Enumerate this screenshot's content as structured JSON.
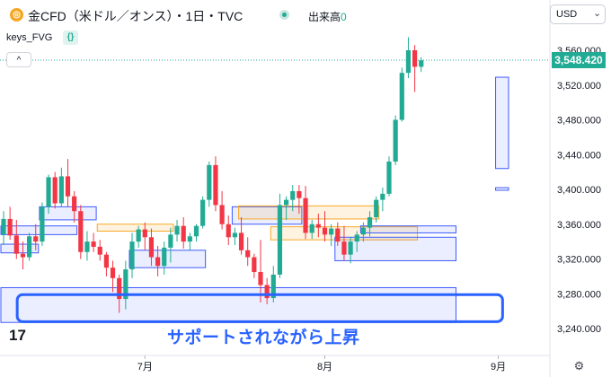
{
  "header": {
    "symbol_title": "金CFD（米ドル／オンス）・1日・TVC",
    "volume_label": "出来高",
    "volume_value": "0",
    "currency": "USD",
    "currency_icon": "chevron-down-icon",
    "coin_icon": "gold-coin-icon"
  },
  "indicator": {
    "label": "keys_FVG",
    "icon_text": "{}"
  },
  "collapse_button": {
    "icon": "chevron-up-icon",
    "glyph": "^"
  },
  "last_price": "3,548.420",
  "annotation": "サポートされながら上昇",
  "logo": "17",
  "settings_icon": "gear-icon",
  "colors": {
    "up": "#22ab94",
    "down": "#f23645",
    "box_blue": "#3d5afe",
    "box_orange": "#f9a825",
    "highlight": "#2962ff"
  },
  "chart_data": {
    "type": "candlestick",
    "y_axis": {
      "ticks": [
        3560,
        3520,
        3480,
        3440,
        3400,
        3360,
        3320,
        3280,
        3240
      ],
      "tick_labels": [
        "3,560.000",
        "3,520.000",
        "3,480.000",
        "3,440.000",
        "3,400.000",
        "3,360.000",
        "3,320.000",
        "3,280.000",
        "3,240.000"
      ],
      "range": [
        3223,
        3583
      ]
    },
    "x_axis": {
      "labels": [
        {
          "text": "7月",
          "index": 22
        },
        {
          "text": "8月",
          "index": 50
        },
        {
          "text": "9月",
          "index": 77
        }
      ]
    },
    "last_price": 3548.42,
    "candles": [
      [
        3348,
        3375,
        3336,
        3366
      ],
      [
        3366,
        3380,
        3342,
        3347
      ],
      [
        3347,
        3365,
        3320,
        3326
      ],
      [
        3326,
        3340,
        3308,
        3322
      ],
      [
        3322,
        3350,
        3318,
        3346
      ],
      [
        3346,
        3360,
        3330,
        3340
      ],
      [
        3340,
        3385,
        3335,
        3380
      ],
      [
        3380,
        3417,
        3372,
        3414
      ],
      [
        3414,
        3420,
        3378,
        3384
      ],
      [
        3384,
        3425,
        3380,
        3415
      ],
      [
        3415,
        3435,
        3380,
        3392
      ],
      [
        3392,
        3398,
        3362,
        3375
      ],
      [
        3375,
        3382,
        3320,
        3328
      ],
      [
        3328,
        3352,
        3318,
        3340
      ],
      [
        3340,
        3350,
        3328,
        3334
      ],
      [
        3334,
        3342,
        3318,
        3325
      ],
      [
        3325,
        3328,
        3300,
        3310
      ],
      [
        3310,
        3318,
        3282,
        3298
      ],
      [
        3298,
        3302,
        3258,
        3274
      ],
      [
        3274,
        3318,
        3262,
        3308
      ],
      [
        3308,
        3350,
        3298,
        3340
      ],
      [
        3340,
        3358,
        3333,
        3354
      ],
      [
        3354,
        3362,
        3330,
        3345
      ],
      [
        3345,
        3355,
        3312,
        3322
      ],
      [
        3322,
        3335,
        3300,
        3312
      ],
      [
        3312,
        3340,
        3302,
        3333
      ],
      [
        3333,
        3356,
        3316,
        3348
      ],
      [
        3348,
        3365,
        3340,
        3358
      ],
      [
        3358,
        3368,
        3332,
        3340
      ],
      [
        3340,
        3350,
        3330,
        3346
      ],
      [
        3346,
        3360,
        3340,
        3358
      ],
      [
        3358,
        3392,
        3355,
        3388
      ],
      [
        3388,
        3432,
        3380,
        3428
      ],
      [
        3428,
        3438,
        3375,
        3382
      ],
      [
        3382,
        3398,
        3354,
        3360
      ],
      [
        3360,
        3370,
        3336,
        3345
      ],
      [
        3345,
        3356,
        3336,
        3350
      ],
      [
        3350,
        3368,
        3325,
        3330
      ],
      [
        3330,
        3345,
        3312,
        3322
      ],
      [
        3322,
        3326,
        3298,
        3305
      ],
      [
        3305,
        3342,
        3270,
        3290
      ],
      [
        3290,
        3298,
        3268,
        3275
      ],
      [
        3275,
        3312,
        3270,
        3302
      ],
      [
        3302,
        3395,
        3298,
        3382
      ],
      [
        3382,
        3392,
        3365,
        3388
      ],
      [
        3388,
        3405,
        3375,
        3398
      ],
      [
        3398,
        3405,
        3372,
        3390
      ],
      [
        3390,
        3404,
        3343,
        3350
      ],
      [
        3350,
        3365,
        3343,
        3360
      ],
      [
        3360,
        3372,
        3345,
        3356
      ],
      [
        3356,
        3375,
        3340,
        3348
      ],
      [
        3348,
        3360,
        3335,
        3355
      ],
      [
        3355,
        3362,
        3335,
        3340
      ],
      [
        3340,
        3358,
        3318,
        3325
      ],
      [
        3325,
        3345,
        3315,
        3340
      ],
      [
        3340,
        3352,
        3328,
        3348
      ],
      [
        3348,
        3362,
        3340,
        3356
      ],
      [
        3356,
        3375,
        3346,
        3368
      ],
      [
        3368,
        3392,
        3362,
        3388
      ],
      [
        3388,
        3402,
        3375,
        3395
      ],
      [
        3395,
        3438,
        3392,
        3432
      ],
      [
        3432,
        3485,
        3428,
        3480
      ],
      [
        3480,
        3540,
        3478,
        3534
      ],
      [
        3534,
        3575,
        3528,
        3560
      ],
      [
        3560,
        3566,
        3512,
        3541
      ],
      [
        3541,
        3552,
        3535,
        3548.42
      ]
    ],
    "fvg_zones": [
      {
        "color": "blue",
        "y": [
          3348,
          3358
        ],
        "x": [
          0,
          11
        ]
      },
      {
        "color": "blue",
        "y": [
          3327,
          3337
        ],
        "x": [
          0,
          5
        ]
      },
      {
        "color": "blue",
        "y": [
          3365,
          3380
        ],
        "x": [
          6,
          14
        ]
      },
      {
        "color": "blue",
        "y": [
          3310,
          3330
        ],
        "x": [
          20,
          31
        ]
      },
      {
        "color": "orange",
        "y": [
          3352,
          3360
        ],
        "x": [
          15,
          26
        ]
      },
      {
        "color": "blue",
        "y": [
          3360,
          3380
        ],
        "x": [
          36,
          46
        ]
      },
      {
        "color": "orange",
        "y": [
          3366,
          3381
        ],
        "x": [
          37,
          58
        ]
      },
      {
        "color": "orange",
        "y": [
          3342,
          3357
        ],
        "x": [
          42,
          64
        ]
      },
      {
        "color": "blue",
        "y": [
          3350,
          3358
        ],
        "x": [
          56,
          70
        ]
      },
      {
        "color": "blue",
        "y": [
          3318,
          3345
        ],
        "x": [
          52,
          70
        ]
      },
      {
        "color": "blue",
        "y": [
          3247,
          3287
        ],
        "x": [
          0,
          70
        ]
      },
      {
        "color": "blue",
        "y": [
          3424,
          3529
        ],
        "x": [
          77,
          80
        ]
      },
      {
        "color": "blue",
        "y": [
          3399,
          3402
        ],
        "x": [
          77,
          80
        ]
      }
    ],
    "highlight_zone": {
      "y": [
        3250,
        3280
      ],
      "x": [
        1,
        69
      ]
    }
  }
}
